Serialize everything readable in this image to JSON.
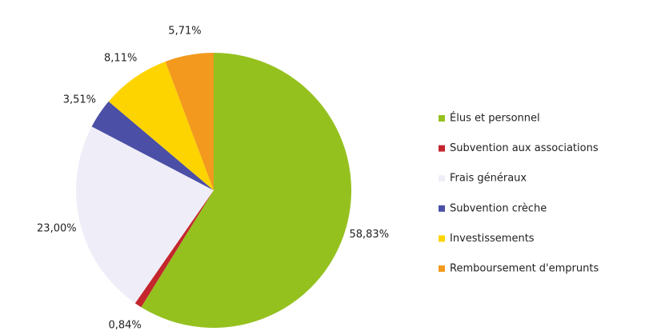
{
  "chart_data": {
    "type": "pie",
    "categories": [
      "Élus et personnel",
      "Subvention aux associations",
      "Frais généraux",
      "Subvention crèche",
      "Investissements",
      "Remboursement d'emprunts"
    ],
    "values": [
      58.83,
      0.84,
      23.0,
      3.51,
      8.11,
      5.71
    ],
    "value_labels": [
      "58,83%",
      "0,84%",
      "23,00%",
      "3,51%",
      "8,11%",
      "5,71%"
    ],
    "colors": [
      "#95c11f",
      "#c4262e",
      "#efeef8",
      "#4b4fa6",
      "#fdd400",
      "#f39a1e"
    ],
    "legend": "right"
  }
}
